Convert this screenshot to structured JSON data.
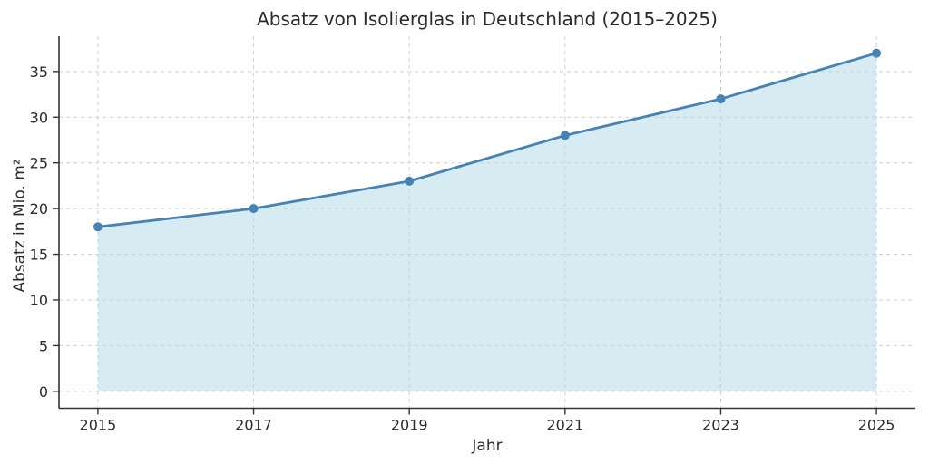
{
  "chart": {
    "title": "Absatz von Isolierglas in Deutschland (2015–2025)",
    "xlabel": "Jahr",
    "ylabel": "Absatz in Mio. m²"
  },
  "chart_data": {
    "type": "line",
    "area_fill": true,
    "title": "Absatz von Isolierglas in Deutschland (2015–2025)",
    "xlabel": "Jahr",
    "ylabel": "Absatz in Mio. m²",
    "x": [
      2015,
      2017,
      2019,
      2021,
      2023,
      2025
    ],
    "values": [
      18,
      20,
      23,
      28,
      32,
      37
    ],
    "xticks": [
      2015,
      2017,
      2019,
      2021,
      2023,
      2025
    ],
    "xticklabels": [
      "2015",
      "2017",
      "2019",
      "2021",
      "2023",
      "2025"
    ],
    "yticks": [
      0,
      5,
      10,
      15,
      20,
      25,
      30,
      35
    ],
    "yticklabels": [
      "0",
      "5",
      "10",
      "15",
      "20",
      "25",
      "30",
      "35"
    ],
    "xlim": [
      2014.5,
      2025.5
    ],
    "ylim": [
      -1.85,
      38.85
    ],
    "grid": true,
    "grid_style": "dashed",
    "legend": "none",
    "colors": {
      "line": "#4682b4",
      "marker": "#4682b4",
      "fill": "#add8e6",
      "fill_opacity": 0.5,
      "grid": "#cfcfcf",
      "spine": "#333333",
      "text": "#2b2b2b"
    }
  }
}
